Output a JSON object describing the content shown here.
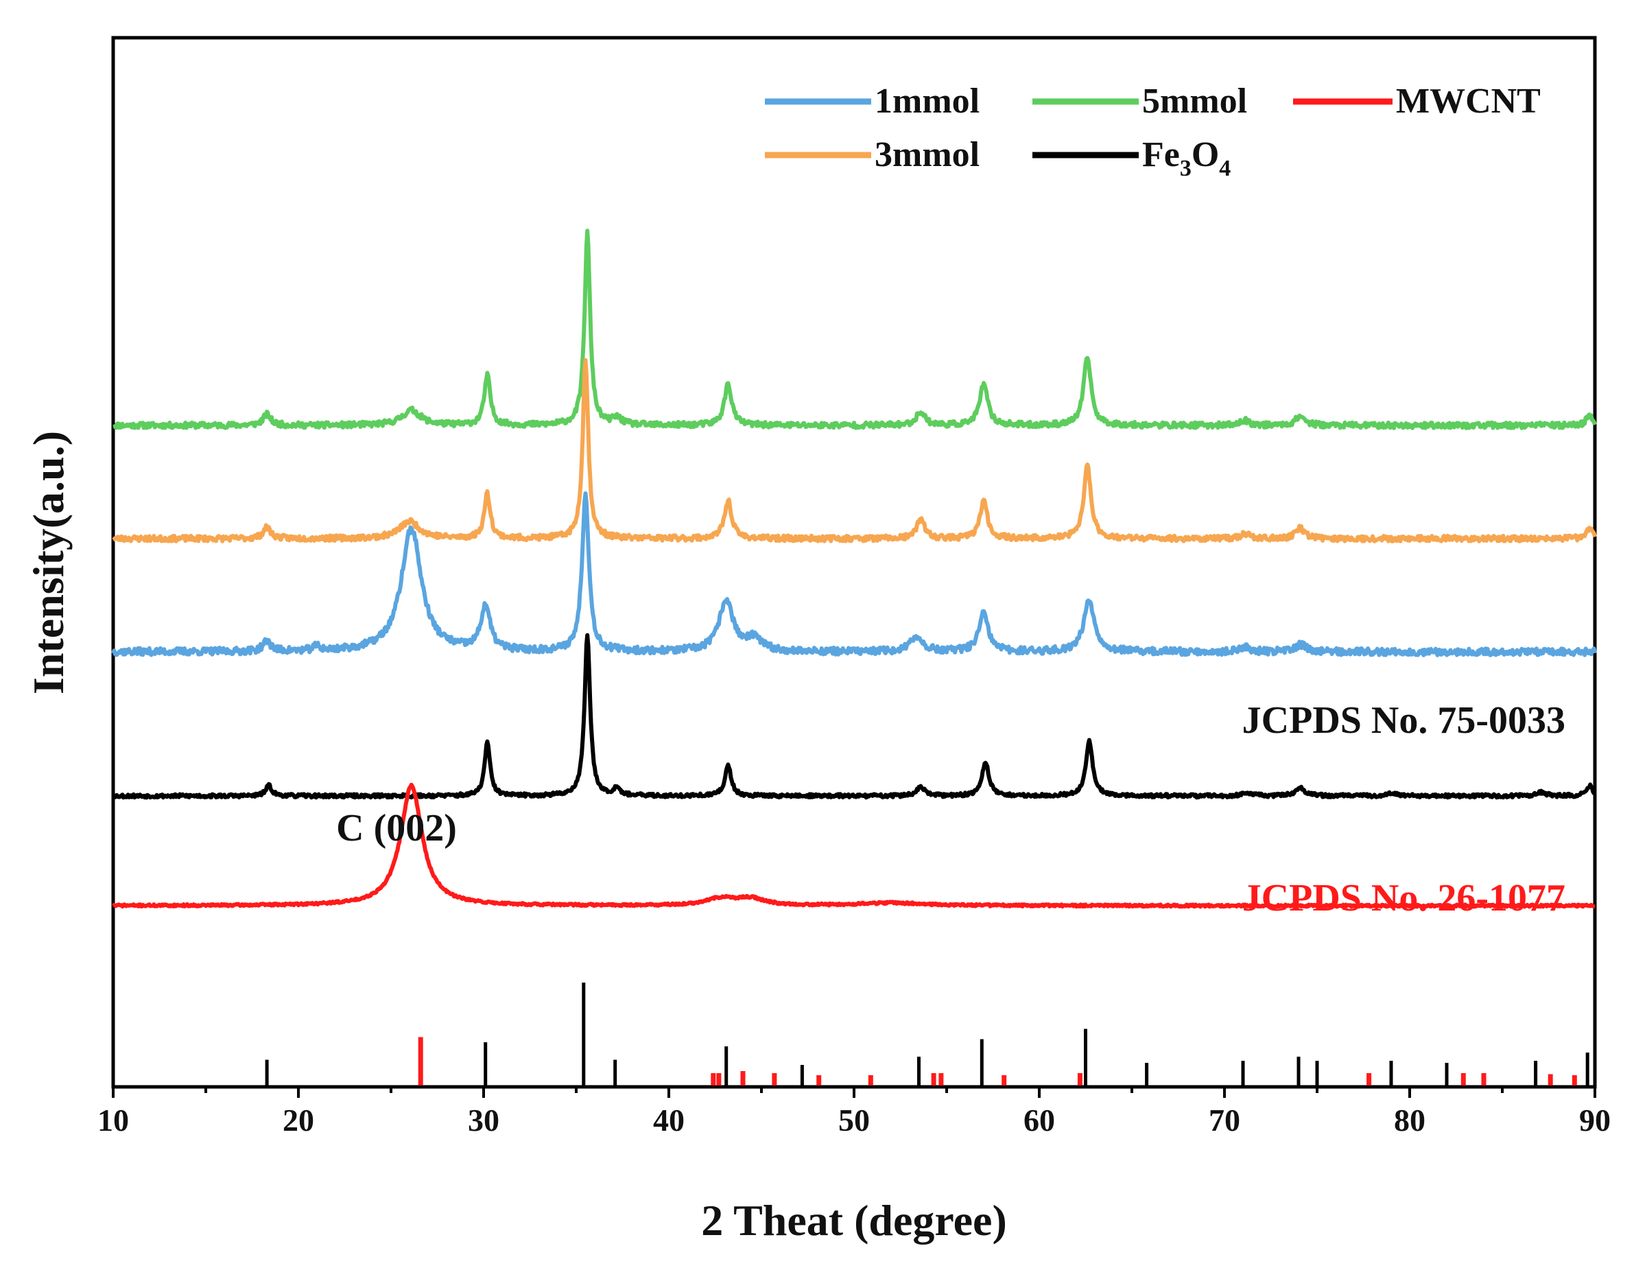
{
  "chart_data": {
    "type": "line",
    "title": "",
    "xlabel": "2 Theat (degree)",
    "ylabel": "Intensity(a.u.)",
    "xlim": [
      10,
      90
    ],
    "x_ticks": [
      10,
      20,
      30,
      40,
      50,
      60,
      70,
      80,
      90
    ],
    "y_ticks_shown": false,
    "legend": {
      "position": "top-right",
      "entries": [
        {
          "key": "1mmol",
          "label": "1mmol",
          "color": "#5aa5e0"
        },
        {
          "key": "5mmol",
          "label": "5mmol",
          "color": "#5dcd5d"
        },
        {
          "key": "MWCNT",
          "label": "MWCNT",
          "color": "#ff1a1a"
        },
        {
          "key": "3mmol",
          "label": "3mmol",
          "color": "#f7a650"
        },
        {
          "key": "Fe3O4",
          "label": "Fe",
          "sub1": "3",
          "mid": "O",
          "sub2": "4",
          "color": "#000000"
        }
      ]
    },
    "series": [
      {
        "name": "5mmol",
        "color": "#5dcd5d",
        "baseline": 5.4,
        "noise": 0.04,
        "seed": 11,
        "peaks": [
          [
            18.3,
            0.16,
            0.25
          ],
          [
            26.1,
            0.22,
            0.6
          ],
          [
            30.2,
            0.72,
            0.2
          ],
          [
            35.6,
            2.8,
            0.18
          ],
          [
            37.2,
            0.1,
            0.3
          ],
          [
            43.2,
            0.6,
            0.24
          ],
          [
            53.6,
            0.2,
            0.28
          ],
          [
            57.0,
            0.6,
            0.26
          ],
          [
            62.6,
            1.0,
            0.24
          ],
          [
            71.1,
            0.07,
            0.3
          ],
          [
            74.1,
            0.14,
            0.3
          ],
          [
            89.7,
            0.15,
            0.2
          ]
        ]
      },
      {
        "name": "3mmol",
        "color": "#f7a650",
        "baseline": 3.75,
        "noise": 0.04,
        "seed": 23,
        "peaks": [
          [
            18.3,
            0.16,
            0.25
          ],
          [
            26.0,
            0.25,
            0.65
          ],
          [
            30.2,
            0.65,
            0.2
          ],
          [
            35.5,
            2.6,
            0.18
          ],
          [
            43.2,
            0.55,
            0.24
          ],
          [
            53.6,
            0.3,
            0.24
          ],
          [
            57.0,
            0.55,
            0.24
          ],
          [
            62.6,
            1.05,
            0.24
          ],
          [
            71.1,
            0.07,
            0.3
          ],
          [
            74.1,
            0.15,
            0.3
          ],
          [
            89.7,
            0.15,
            0.2
          ]
        ]
      },
      {
        "name": "1mmol",
        "color": "#5aa5e0",
        "baseline": 2.1,
        "noise": 0.05,
        "seed": 37,
        "peaks": [
          [
            18.3,
            0.15,
            0.25
          ],
          [
            21.0,
            0.07,
            0.2
          ],
          [
            26.1,
            1.8,
            0.65
          ],
          [
            30.1,
            0.65,
            0.3
          ],
          [
            35.5,
            2.3,
            0.22
          ],
          [
            43.1,
            0.75,
            0.45
          ],
          [
            44.6,
            0.18,
            0.5
          ],
          [
            53.4,
            0.22,
            0.4
          ],
          [
            57.0,
            0.55,
            0.3
          ],
          [
            62.7,
            0.75,
            0.35
          ],
          [
            71.1,
            0.07,
            0.3
          ],
          [
            74.1,
            0.1,
            0.4
          ]
        ]
      },
      {
        "name": "Fe3O4",
        "color": "#000000",
        "baseline": 0.0,
        "noise": 0.025,
        "seed": 53,
        "peaks": [
          [
            18.4,
            0.15,
            0.2
          ],
          [
            30.2,
            0.78,
            0.18
          ],
          [
            35.6,
            2.35,
            0.18
          ],
          [
            37.2,
            0.12,
            0.2
          ],
          [
            43.2,
            0.45,
            0.2
          ],
          [
            53.6,
            0.13,
            0.25
          ],
          [
            57.1,
            0.5,
            0.22
          ],
          [
            62.7,
            0.8,
            0.22
          ],
          [
            71.2,
            0.05,
            0.3
          ],
          [
            74.1,
            0.12,
            0.3
          ],
          [
            79.0,
            0.04,
            0.3
          ],
          [
            87.1,
            0.05,
            0.3
          ],
          [
            89.7,
            0.15,
            0.2
          ]
        ]
      },
      {
        "name": "MWCNT",
        "color": "#ff1a1a",
        "baseline": -1.6,
        "noise": 0.015,
        "seed": 71,
        "peaks": [
          [
            26.1,
            1.75,
            0.7
          ],
          [
            42.8,
            0.1,
            0.9
          ],
          [
            44.4,
            0.1,
            0.9
          ],
          [
            52.0,
            0.04,
            2.0
          ]
        ]
      }
    ],
    "reference_patterns": [
      {
        "name": "JCPDS No. 75-0033",
        "color": "#000000",
        "positions": [
          18.3,
          30.1,
          35.4,
          37.1,
          43.1,
          47.2,
          53.5,
          56.9,
          62.5,
          65.8,
          71.0,
          74.0,
          75.0,
          79.0,
          82.0,
          86.8,
          89.6
        ],
        "intensities": [
          25,
          42,
          100,
          25,
          38,
          20,
          28,
          45,
          55,
          22,
          24,
          28,
          24,
          24,
          22,
          24,
          32
        ]
      },
      {
        "name": "JCPDS No. 26-1077",
        "color": "#ff1a1a",
        "positions": [
          26.6,
          42.4,
          42.7,
          44.0,
          45.7,
          48.1,
          50.9,
          54.3,
          54.7,
          58.1,
          62.2,
          77.8,
          82.9,
          84.0,
          87.6,
          88.9
        ],
        "intensities": [
          47,
          12,
          12,
          14,
          12,
          10,
          10,
          12,
          12,
          10,
          12,
          12,
          12,
          12,
          11,
          10
        ]
      }
    ],
    "annotations": [
      {
        "text": "JCPDS No. 75-0033",
        "color": "#111111",
        "position": "right, above Fe3O4 trace"
      },
      {
        "text": "JCPDS No. 26-1077",
        "color": "#ff1a1a",
        "position": "right, above MWCNT trace"
      },
      {
        "text": "C (002)",
        "color": "#111111",
        "position": "above MWCNT peak at 26"
      }
    ]
  }
}
